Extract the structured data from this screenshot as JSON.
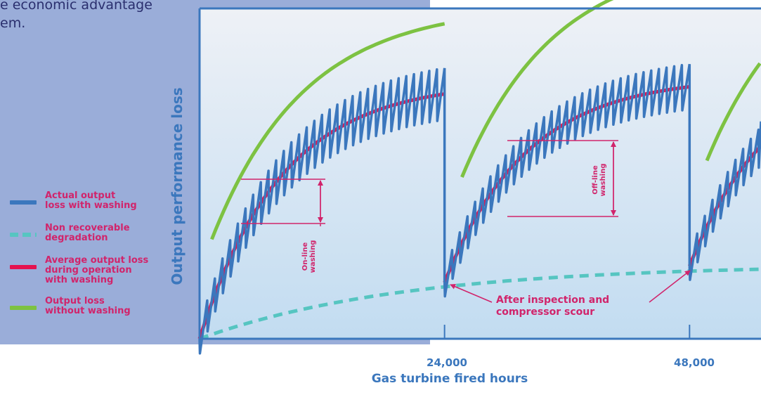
{
  "intro": {
    "text": "e economic advantage\nem."
  },
  "legend": {
    "items": [
      {
        "label": "Actual output\nloss with washing",
        "color": "#3b77bd",
        "style": "solid"
      },
      {
        "label": "Non recoverable\ndegradation",
        "color": "#56c5c1",
        "style": "dashed"
      },
      {
        "label": "Average output loss\nduring operation\nwith washing",
        "color": "#e5134f",
        "style": "solid"
      },
      {
        "label": "Output loss\nwithout washing",
        "color": "#7dc242",
        "style": "solid"
      }
    ]
  },
  "annotations": {
    "after_inspection": "After inspection and\ncompressor scour",
    "online_washing": "On-line\nwashing",
    "offline_washing": "Off-line\nwashing"
  },
  "chart_data": {
    "type": "line",
    "xlabel": "Gas turbine fired hours",
    "ylabel": "Output performance loss",
    "xlim": [
      0,
      55000
    ],
    "ylim": [
      0,
      100
    ],
    "x_ticks": [
      24000,
      48000
    ],
    "x_tick_labels": [
      "24,000",
      "48,000"
    ],
    "series": [
      {
        "name": "Actual output loss with washing",
        "color": "#3b77bd"
      },
      {
        "name": "Non recoverable degradation",
        "color": "#56c5c1"
      },
      {
        "name": "Average output loss during operation with washing",
        "color": "#e5134f"
      },
      {
        "name": "Output loss without washing",
        "color": "#7dc242"
      }
    ],
    "resets_at": [
      24000,
      48000
    ]
  }
}
